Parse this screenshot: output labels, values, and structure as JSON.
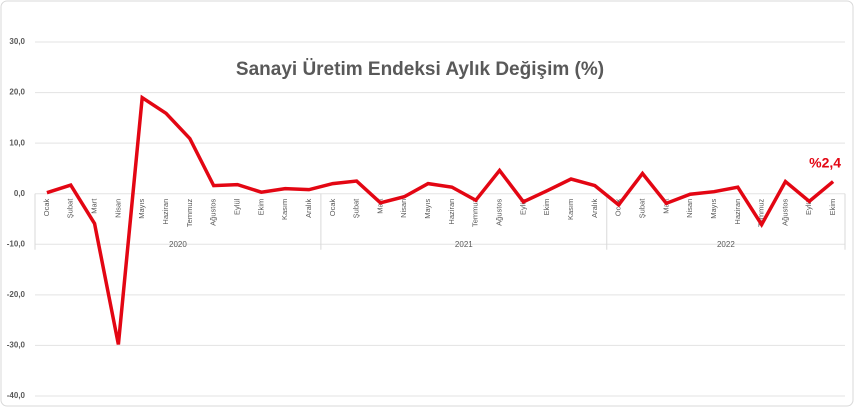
{
  "chart_data": {
    "type": "line",
    "title": "Sanayi Üretim Endeksi Aylık Değişim (%)",
    "groups": [
      {
        "label": "2020",
        "categories": [
          "Ocak",
          "Şubat",
          "Mart",
          "Nisan",
          "Mayıs",
          "Haziran",
          "Temmuz",
          "Ağustos",
          "Eylül",
          "Ekim",
          "Kasım",
          "Aralık"
        ]
      },
      {
        "label": "2021",
        "categories": [
          "Ocak",
          "Şubat",
          "Mart",
          "Nisan",
          "Mayıs",
          "Haziran",
          "Temmuz",
          "Ağustos",
          "Eylül",
          "Ekim",
          "Kasım",
          "Aralık"
        ]
      },
      {
        "label": "2022",
        "categories": [
          "Ocak",
          "Şubat",
          "Mart",
          "Nisan",
          "Mayıs",
          "Haziran",
          "Temmuz",
          "Ağustos",
          "Eylül",
          "Ekim"
        ]
      }
    ],
    "values": [
      0.2,
      1.7,
      -5.9,
      -29.8,
      19.0,
      15.9,
      10.9,
      1.6,
      1.8,
      0.3,
      1.0,
      0.8,
      2.0,
      2.5,
      -1.8,
      -0.6,
      2.0,
      1.3,
      -1.3,
      4.6,
      -1.6,
      0.6,
      2.9,
      1.6,
      -2.2,
      4.0,
      -1.9,
      -0.1,
      0.4,
      1.3,
      -6.1,
      2.4,
      -1.5,
      2.4
    ],
    "value_labels": [
      null,
      null,
      null,
      null,
      null,
      null,
      null,
      null,
      null,
      null,
      null,
      null,
      null,
      null,
      null,
      null,
      null,
      null,
      null,
      null,
      null,
      null,
      null,
      null,
      null,
      null,
      null,
      null,
      null,
      null,
      null,
      null,
      null,
      "%2,4"
    ],
    "color": "#e30613",
    "ylim": [
      -40,
      30
    ],
    "yticks": [
      {
        "value": -40,
        "label": "-40,0"
      },
      {
        "value": -30,
        "label": "-30,0"
      },
      {
        "value": -20,
        "label": "-20,0"
      },
      {
        "value": -10,
        "label": "-10,0"
      },
      {
        "value": 0,
        "label": "0,0"
      },
      {
        "value": 10,
        "label": "10,0"
      },
      {
        "value": 20,
        "label": "20,0"
      },
      {
        "value": 30,
        "label": "30,0"
      }
    ],
    "grid": true
  }
}
